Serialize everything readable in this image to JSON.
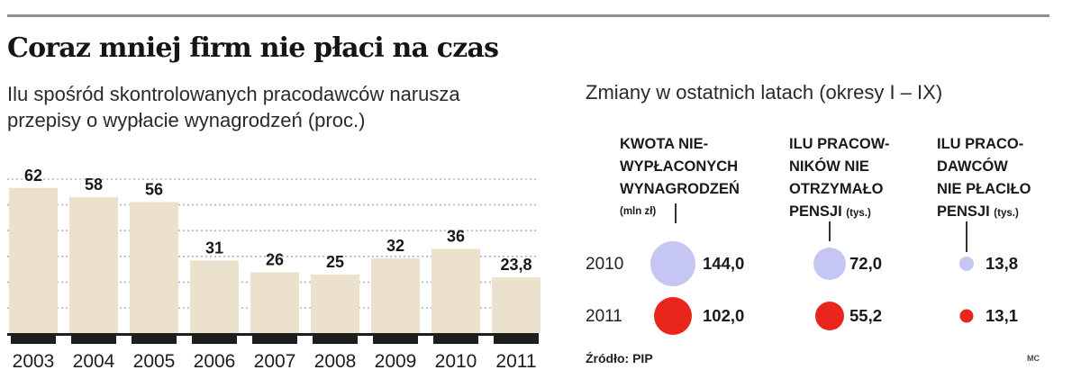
{
  "header": {
    "title": "Coraz mniej firm nie płaci na czas",
    "subtitle_left": "Ilu spośród skontrolowanych pracodawców narusza przepisy o wypłacie wynagrodzeń (proc.)",
    "subtitle_right": "Zmiany w ostatnich latach (okresy I – IX)"
  },
  "chart_data": [
    {
      "type": "bar",
      "title": "Ilu spośród skontrolowanych pracodawców narusza przepisy o wypłacie wynagrodzeń (proc.)",
      "categories": [
        "2003",
        "2004",
        "2005",
        "2006",
        "2007",
        "2008",
        "2009",
        "2010",
        "2011"
      ],
      "values": [
        62,
        58,
        56,
        31,
        26,
        25,
        32,
        36,
        23.8
      ],
      "value_labels": [
        "62",
        "58",
        "56",
        "31",
        "26",
        "25",
        "32",
        "36",
        "23,8"
      ],
      "xlabel": "",
      "ylabel": "",
      "ylim": [
        0,
        70
      ],
      "grid": true,
      "bar_color": "#ece1cd",
      "grid_color": "#b5b5b5"
    },
    {
      "type": "bubble",
      "title": "Zmiany w ostatnich latach (okresy I – IX)",
      "categories": [
        "2010",
        "2011"
      ],
      "series": [
        {
          "name": "KWOTA NIE- WYPŁACONYCH WYNAGRODZEŃ (mln zł)",
          "values": [
            144.0,
            102.0
          ],
          "labels": [
            "144,0",
            "102,0"
          ]
        },
        {
          "name": "ILU PRACOW- NIKÓW NIE OTRZYMAŁO PENSJI (tys.)",
          "values": [
            72.0,
            55.2
          ],
          "labels": [
            "72,0",
            "55,2"
          ]
        },
        {
          "name": "ILU PRACO- DAWCÓW NIE PŁACIŁO PENSJI (tys.)",
          "values": [
            13.8,
            13.1
          ],
          "labels": [
            "13,8",
            "13,1"
          ]
        }
      ],
      "colors": {
        "2010": "#c5c6f3",
        "2011": "#e8261c"
      }
    }
  ],
  "bubbles": {
    "years": [
      "2010",
      "2011"
    ],
    "columns": [
      {
        "heading_lines": [
          "KWOTA NIE-",
          "WYPŁACONYCH",
          "WYNAGRODZEŃ"
        ],
        "unit": "(mln zł)",
        "values": [
          "144,0",
          "102,0"
        ]
      },
      {
        "heading_lines": [
          "ILU PRACOW-",
          "NIKÓW NIE",
          "OTRZYMAŁO",
          "PENSJI"
        ],
        "unit": "(tys.)",
        "values": [
          "72,0",
          "55,2"
        ]
      },
      {
        "heading_lines": [
          "ILU PRACO-",
          "DAWCÓW",
          "NIE PŁACIŁO",
          "PENSJI"
        ],
        "unit": "(tys.)",
        "values": [
          "13,8",
          "13,1"
        ]
      }
    ]
  },
  "footer": {
    "source": "Źródło: PIP",
    "credit": "MC"
  }
}
